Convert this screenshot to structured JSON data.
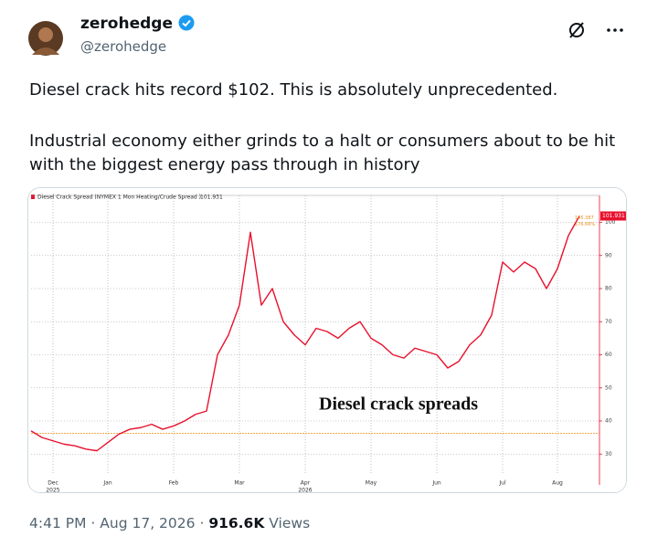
{
  "header": {
    "name": "zerohedge",
    "handle": "@zerohedge"
  },
  "post": {
    "paragraphs": [
      "Diesel crack hits record $102. This is absolutely unprecedented.",
      "Industrial economy either grinds to a halt or consumers about to be hit with the biggest energy pass through in history"
    ]
  },
  "footer": {
    "time": "4:41 PM",
    "separator": "·",
    "date": "Aug 17, 2026",
    "views": "916.6K",
    "views_label": "Views"
  },
  "chart_data": {
    "type": "line",
    "legend_text": "Diesel Crack Spread (NYMEX 1 Mon Heating/Crude Spread )",
    "annotation": "Diesel crack spreads",
    "small_labels": [
      "145.387",
      "176.66%"
    ],
    "categories": [
      null,
      null,
      "Dec",
      null,
      null,
      null,
      null,
      "Jan",
      null,
      null,
      null,
      null,
      null,
      "Feb",
      null,
      null,
      null,
      null,
      null,
      "Mar",
      null,
      null,
      null,
      null,
      null,
      "Apr",
      null,
      null,
      null,
      null,
      null,
      "May",
      null,
      null,
      null,
      null,
      null,
      "Jun",
      null,
      null,
      null,
      null,
      null,
      "Jul",
      null,
      null,
      null,
      null,
      "Aug",
      null,
      null
    ],
    "year_labels": [
      "2025",
      "2026"
    ],
    "series": [
      {
        "name": "Diesel Crack Spread",
        "color": "#e8112d",
        "values": [
          37,
          35,
          34,
          33,
          32.5,
          31.5,
          31,
          33.5,
          36,
          37.5,
          38,
          39,
          37.5,
          38.5,
          40,
          42,
          43,
          60,
          66,
          75,
          97,
          75,
          80,
          70,
          66,
          63,
          68,
          67,
          65,
          68,
          70,
          65,
          63,
          60,
          59,
          62,
          61,
          60,
          56,
          58,
          63,
          66,
          72,
          88,
          85,
          88,
          86,
          80,
          86,
          96,
          101.931
        ]
      }
    ],
    "reference_line": 36.3,
    "ylim": [
      24,
      104
    ],
    "yticks": [
      30,
      40,
      50,
      60,
      70,
      80,
      90,
      100
    ],
    "grid": true
  }
}
